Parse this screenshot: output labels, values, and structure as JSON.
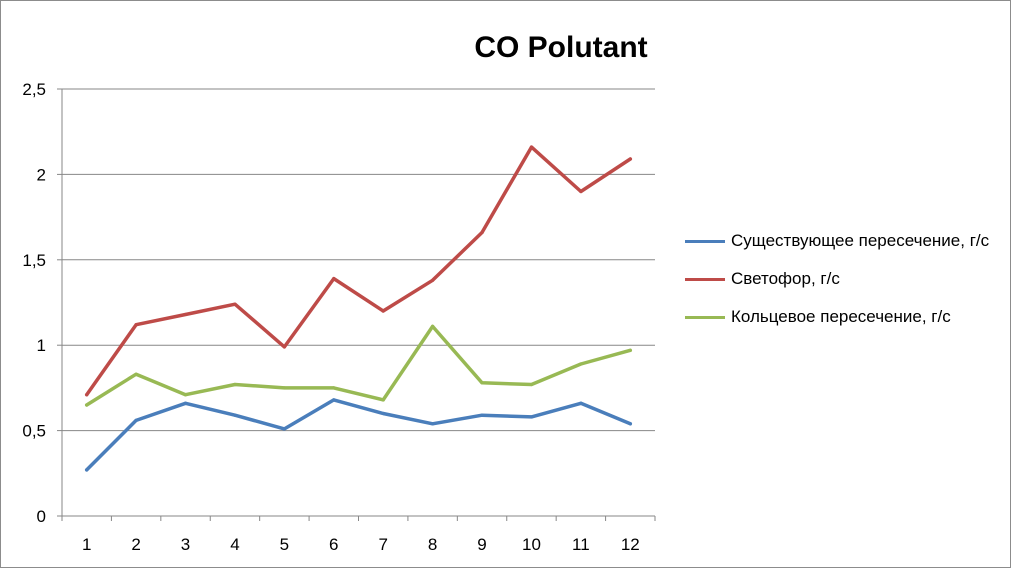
{
  "chart_data": {
    "type": "line",
    "title": "CO Polutant",
    "xlabel": "",
    "ylabel": "",
    "categories": [
      "1",
      "2",
      "3",
      "4",
      "5",
      "6",
      "7",
      "8",
      "9",
      "10",
      "11",
      "12"
    ],
    "ylim": [
      0,
      2.5
    ],
    "yticks": [
      "0",
      "0,5",
      "1",
      "1,5",
      "2",
      "2,5"
    ],
    "grid": "horizontal",
    "legend_position": "right",
    "series": [
      {
        "name": "Существующее пересечение, г/с",
        "color": "#4a7ebb",
        "values": [
          0.27,
          0.56,
          0.66,
          0.59,
          0.51,
          0.68,
          0.6,
          0.54,
          0.59,
          0.58,
          0.66,
          0.54
        ]
      },
      {
        "name": "Светофор, г/с",
        "color": "#be4b48",
        "values": [
          0.71,
          1.12,
          1.18,
          1.24,
          0.99,
          1.39,
          1.2,
          1.38,
          1.66,
          2.16,
          1.9,
          2.09
        ]
      },
      {
        "name": "Кольцевое пересечение, г/с",
        "color": "#98b954",
        "values": [
          0.65,
          0.83,
          0.71,
          0.77,
          0.75,
          0.75,
          0.68,
          1.11,
          0.78,
          0.77,
          0.89,
          0.97
        ]
      }
    ]
  }
}
